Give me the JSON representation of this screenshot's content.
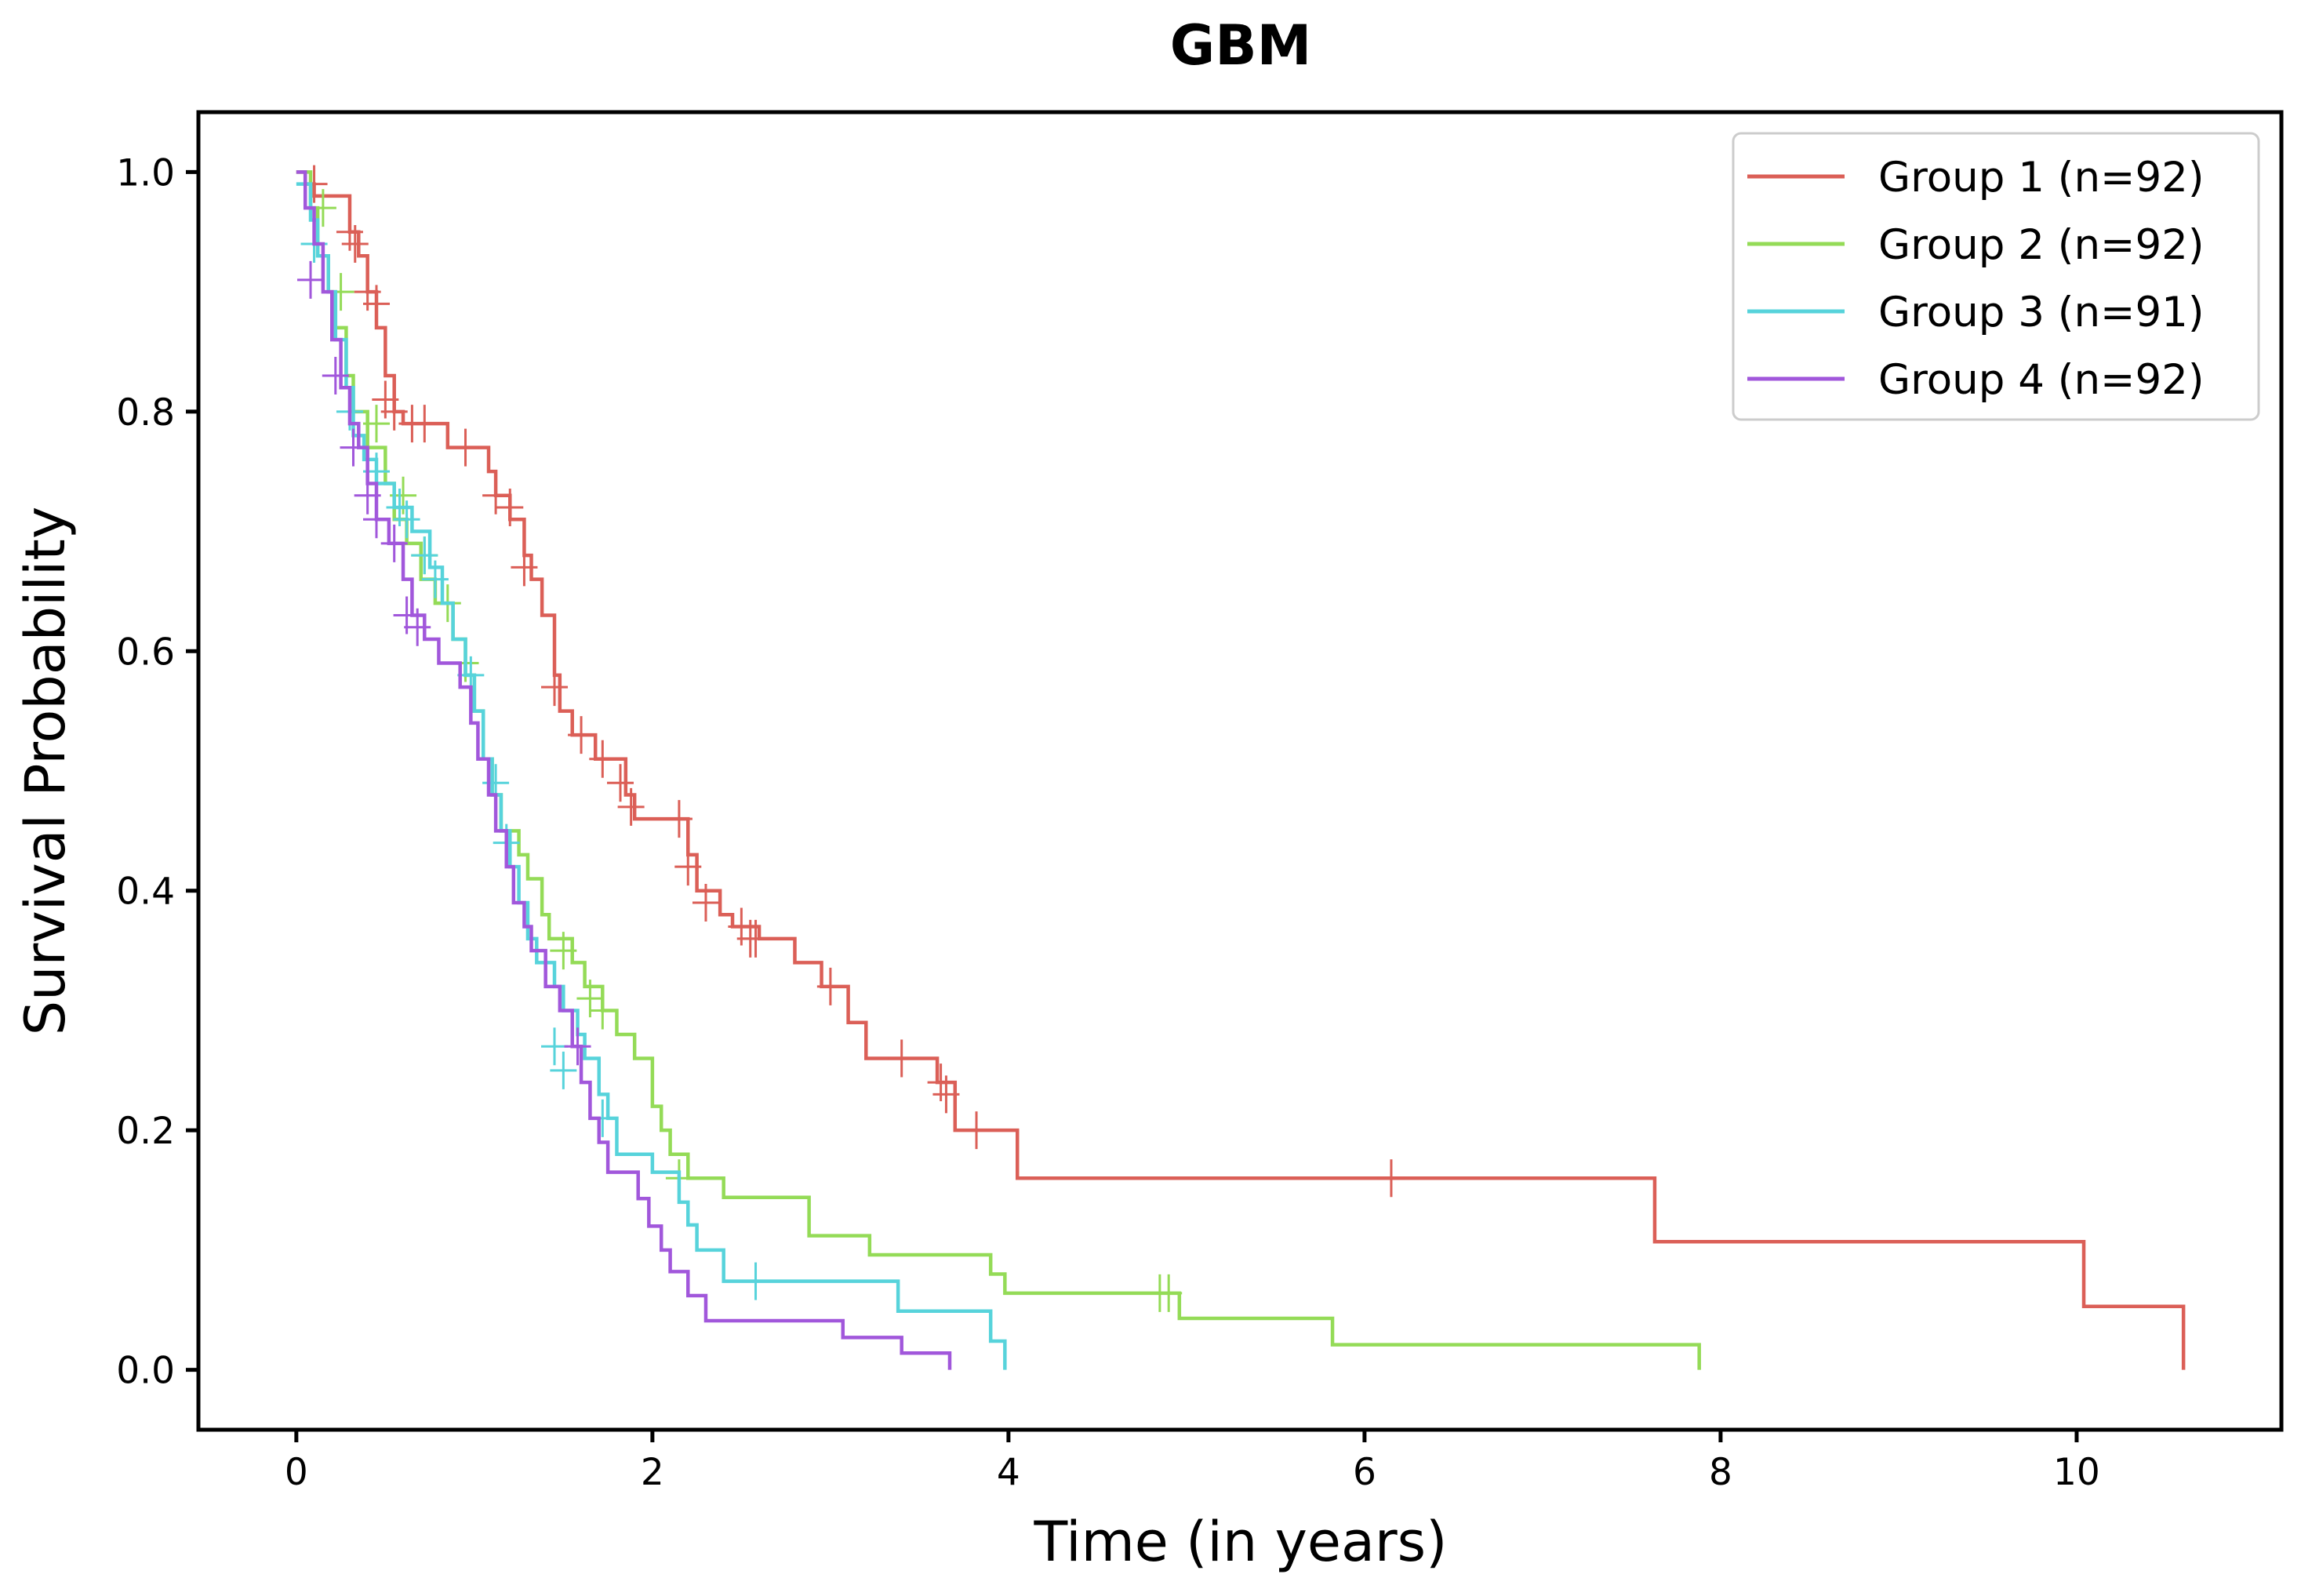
{
  "chart_data": {
    "type": "line",
    "subtype": "kaplan-meier step",
    "title": "GBM",
    "xlabel": "Time (in years)",
    "ylabel": "Survival Probability",
    "xlim": [
      -0.55,
      11.15
    ],
    "ylim": [
      -0.05,
      1.05
    ],
    "xticks": [
      0,
      2,
      4,
      6,
      8,
      10
    ],
    "yticks": [
      0.0,
      0.2,
      0.4,
      0.6,
      0.8,
      1.0
    ],
    "xtick_labels": [
      "0",
      "2",
      "4",
      "6",
      "8",
      "10"
    ],
    "ytick_labels": [
      "0.0",
      "0.2",
      "0.4",
      "0.6",
      "0.8",
      "1.0"
    ],
    "grid": false,
    "legend_position": "top-right",
    "series": [
      {
        "name": "Group 1 (n=92)",
        "color": "#db5f57",
        "steps": [
          [
            0,
            1.0
          ],
          [
            0.05,
            0.99
          ],
          [
            0.1,
            0.98
          ],
          [
            0.3,
            0.95
          ],
          [
            0.35,
            0.93
          ],
          [
            0.4,
            0.9
          ],
          [
            0.45,
            0.87
          ],
          [
            0.5,
            0.83
          ],
          [
            0.55,
            0.8
          ],
          [
            0.6,
            0.79
          ],
          [
            0.85,
            0.77
          ],
          [
            1.08,
            0.75
          ],
          [
            1.12,
            0.73
          ],
          [
            1.2,
            0.71
          ],
          [
            1.28,
            0.68
          ],
          [
            1.32,
            0.66
          ],
          [
            1.38,
            0.63
          ],
          [
            1.45,
            0.58
          ],
          [
            1.48,
            0.55
          ],
          [
            1.55,
            0.53
          ],
          [
            1.68,
            0.51
          ],
          [
            1.85,
            0.48
          ],
          [
            1.9,
            0.46
          ],
          [
            2.2,
            0.43
          ],
          [
            2.25,
            0.4
          ],
          [
            2.38,
            0.38
          ],
          [
            2.45,
            0.37
          ],
          [
            2.6,
            0.36
          ],
          [
            2.8,
            0.34
          ],
          [
            2.95,
            0.32
          ],
          [
            3.1,
            0.29
          ],
          [
            3.2,
            0.26
          ],
          [
            3.6,
            0.24
          ],
          [
            3.7,
            0.2
          ],
          [
            4.05,
            0.16
          ],
          [
            7.63,
            0.107
          ],
          [
            10.04,
            0.053
          ],
          [
            10.6,
            0.0
          ]
        ],
        "end": 10.6,
        "censors": [
          [
            0.1,
            0.99
          ],
          [
            0.3,
            0.95
          ],
          [
            0.33,
            0.94
          ],
          [
            0.4,
            0.9
          ],
          [
            0.45,
            0.89
          ],
          [
            0.5,
            0.81
          ],
          [
            0.55,
            0.8
          ],
          [
            0.65,
            0.79
          ],
          [
            0.72,
            0.79
          ],
          [
            0.95,
            0.77
          ],
          [
            1.12,
            0.73
          ],
          [
            1.2,
            0.72
          ],
          [
            1.28,
            0.67
          ],
          [
            1.45,
            0.57
          ],
          [
            1.6,
            0.53
          ],
          [
            1.72,
            0.51
          ],
          [
            1.82,
            0.49
          ],
          [
            1.88,
            0.47
          ],
          [
            2.15,
            0.46
          ],
          [
            2.2,
            0.42
          ],
          [
            2.3,
            0.39
          ],
          [
            2.5,
            0.37
          ],
          [
            2.55,
            0.36
          ],
          [
            2.58,
            0.36
          ],
          [
            3.0,
            0.32
          ],
          [
            3.4,
            0.26
          ],
          [
            3.62,
            0.24
          ],
          [
            3.65,
            0.23
          ],
          [
            3.82,
            0.2
          ],
          [
            6.15,
            0.16
          ]
        ]
      },
      {
        "name": "Group 2 (n=92)",
        "color": "#94db57",
        "steps": [
          [
            0,
            1.0
          ],
          [
            0.08,
            0.97
          ],
          [
            0.12,
            0.93
          ],
          [
            0.18,
            0.9
          ],
          [
            0.22,
            0.87
          ],
          [
            0.28,
            0.83
          ],
          [
            0.32,
            0.8
          ],
          [
            0.4,
            0.77
          ],
          [
            0.5,
            0.74
          ],
          [
            0.55,
            0.71
          ],
          [
            0.62,
            0.69
          ],
          [
            0.7,
            0.66
          ],
          [
            0.78,
            0.64
          ],
          [
            0.88,
            0.61
          ],
          [
            0.95,
            0.58
          ],
          [
            1.0,
            0.55
          ],
          [
            1.05,
            0.51
          ],
          [
            1.1,
            0.48
          ],
          [
            1.15,
            0.45
          ],
          [
            1.25,
            0.43
          ],
          [
            1.3,
            0.41
          ],
          [
            1.38,
            0.38
          ],
          [
            1.42,
            0.36
          ],
          [
            1.55,
            0.34
          ],
          [
            1.62,
            0.32
          ],
          [
            1.72,
            0.3
          ],
          [
            1.8,
            0.28
          ],
          [
            1.9,
            0.26
          ],
          [
            2.0,
            0.22
          ],
          [
            2.05,
            0.2
          ],
          [
            2.1,
            0.18
          ],
          [
            2.2,
            0.16
          ],
          [
            2.4,
            0.144
          ],
          [
            2.88,
            0.112
          ],
          [
            3.22,
            0.096
          ],
          [
            3.9,
            0.08
          ],
          [
            3.98,
            0.064
          ],
          [
            4.96,
            0.043
          ],
          [
            5.82,
            0.021
          ],
          [
            7.88,
            0.0
          ]
        ],
        "end": 7.88,
        "censors": [
          [
            0.15,
            0.97
          ],
          [
            0.25,
            0.9
          ],
          [
            0.45,
            0.79
          ],
          [
            0.6,
            0.73
          ],
          [
            0.72,
            0.68
          ],
          [
            0.85,
            0.64
          ],
          [
            0.95,
            0.59
          ],
          [
            1.5,
            0.35
          ],
          [
            1.65,
            0.31
          ],
          [
            1.72,
            0.3
          ],
          [
            2.15,
            0.16
          ],
          [
            4.85,
            0.064
          ],
          [
            4.9,
            0.064
          ]
        ]
      },
      {
        "name": "Group 3 (n=91)",
        "color": "#57d3db",
        "steps": [
          [
            0,
            0.99
          ],
          [
            0.08,
            0.96
          ],
          [
            0.12,
            0.93
          ],
          [
            0.18,
            0.9
          ],
          [
            0.22,
            0.86
          ],
          [
            0.28,
            0.82
          ],
          [
            0.32,
            0.78
          ],
          [
            0.38,
            0.76
          ],
          [
            0.45,
            0.74
          ],
          [
            0.55,
            0.72
          ],
          [
            0.65,
            0.7
          ],
          [
            0.75,
            0.67
          ],
          [
            0.82,
            0.64
          ],
          [
            0.88,
            0.61
          ],
          [
            0.95,
            0.58
          ],
          [
            1.0,
            0.55
          ],
          [
            1.05,
            0.51
          ],
          [
            1.1,
            0.48
          ],
          [
            1.15,
            0.45
          ],
          [
            1.2,
            0.42
          ],
          [
            1.25,
            0.39
          ],
          [
            1.3,
            0.36
          ],
          [
            1.35,
            0.34
          ],
          [
            1.45,
            0.32
          ],
          [
            1.5,
            0.3
          ],
          [
            1.58,
            0.28
          ],
          [
            1.62,
            0.26
          ],
          [
            1.7,
            0.23
          ],
          [
            1.75,
            0.21
          ],
          [
            1.8,
            0.18
          ],
          [
            2.0,
            0.165
          ],
          [
            2.15,
            0.14
          ],
          [
            2.2,
            0.121
          ],
          [
            2.25,
            0.1
          ],
          [
            2.4,
            0.074
          ],
          [
            3.38,
            0.049
          ],
          [
            3.9,
            0.024
          ],
          [
            3.98,
            0.0
          ]
        ],
        "end": 3.98,
        "censors": [
          [
            0.1,
            0.94
          ],
          [
            0.3,
            0.8
          ],
          [
            0.45,
            0.75
          ],
          [
            0.58,
            0.72
          ],
          [
            0.62,
            0.71
          ],
          [
            0.72,
            0.68
          ],
          [
            0.78,
            0.66
          ],
          [
            0.98,
            0.58
          ],
          [
            1.12,
            0.49
          ],
          [
            1.18,
            0.44
          ],
          [
            1.45,
            0.27
          ],
          [
            1.5,
            0.25
          ],
          [
            1.72,
            0.21
          ],
          [
            2.58,
            0.074
          ]
        ]
      },
      {
        "name": "Group 4 (n=92)",
        "color": "#a157db",
        "steps": [
          [
            0,
            1.0
          ],
          [
            0.05,
            0.97
          ],
          [
            0.1,
            0.94
          ],
          [
            0.15,
            0.9
          ],
          [
            0.2,
            0.86
          ],
          [
            0.25,
            0.82
          ],
          [
            0.3,
            0.79
          ],
          [
            0.35,
            0.77
          ],
          [
            0.4,
            0.74
          ],
          [
            0.45,
            0.71
          ],
          [
            0.52,
            0.69
          ],
          [
            0.6,
            0.66
          ],
          [
            0.65,
            0.63
          ],
          [
            0.72,
            0.61
          ],
          [
            0.8,
            0.59
          ],
          [
            0.92,
            0.57
          ],
          [
            0.98,
            0.54
          ],
          [
            1.02,
            0.51
          ],
          [
            1.08,
            0.48
          ],
          [
            1.12,
            0.45
          ],
          [
            1.18,
            0.42
          ],
          [
            1.22,
            0.39
          ],
          [
            1.28,
            0.37
          ],
          [
            1.32,
            0.35
          ],
          [
            1.4,
            0.32
          ],
          [
            1.48,
            0.3
          ],
          [
            1.55,
            0.27
          ],
          [
            1.6,
            0.24
          ],
          [
            1.65,
            0.21
          ],
          [
            1.7,
            0.19
          ],
          [
            1.75,
            0.165
          ],
          [
            1.92,
            0.143
          ],
          [
            1.98,
            0.12
          ],
          [
            2.05,
            0.1
          ],
          [
            2.1,
            0.082
          ],
          [
            2.2,
            0.062
          ],
          [
            2.3,
            0.041
          ],
          [
            3.07,
            0.027
          ],
          [
            3.4,
            0.014
          ],
          [
            3.67,
            0.0
          ]
        ],
        "end": 3.67,
        "censors": [
          [
            0.08,
            0.91
          ],
          [
            0.22,
            0.83
          ],
          [
            0.32,
            0.77
          ],
          [
            0.4,
            0.73
          ],
          [
            0.45,
            0.71
          ],
          [
            0.55,
            0.69
          ],
          [
            0.62,
            0.63
          ],
          [
            0.68,
            0.62
          ],
          [
            1.58,
            0.27
          ]
        ]
      }
    ]
  }
}
